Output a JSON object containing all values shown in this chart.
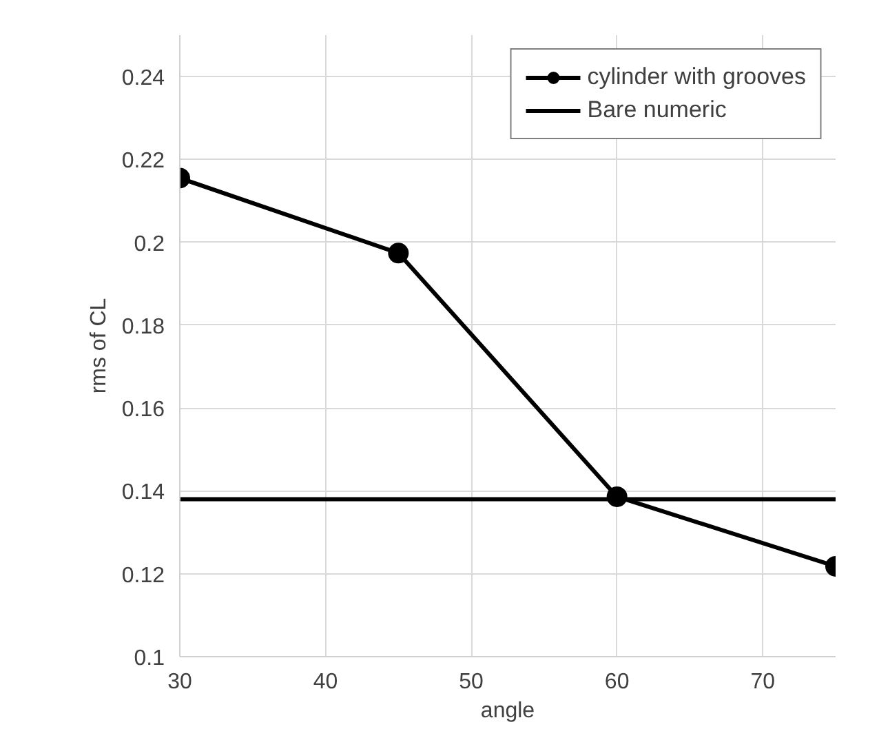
{
  "chart_data": {
    "type": "line",
    "xlabel": "angle",
    "ylabel": "rms of CL",
    "xlim": [
      30,
      75
    ],
    "xticks": [
      30,
      40,
      50,
      60,
      70
    ],
    "ylim": [
      0.1,
      0.25
    ],
    "yticks": [
      0.1,
      0.12,
      0.14,
      0.16,
      0.18,
      0.2,
      0.22,
      0.24
    ],
    "grid": true,
    "legend": "top right",
    "line_style": "solid",
    "series": [
      {
        "name": "cylinder with grooves",
        "color": "#000000",
        "marker": "circle",
        "x": [
          30,
          45,
          60,
          75
        ],
        "values": [
          0.2155,
          0.1974,
          0.1386,
          0.1218
        ]
      },
      {
        "name": "Bare numeric",
        "color": "#000000",
        "marker": "none",
        "x": [
          30,
          75
        ],
        "values": [
          0.138,
          0.138
        ]
      }
    ]
  }
}
